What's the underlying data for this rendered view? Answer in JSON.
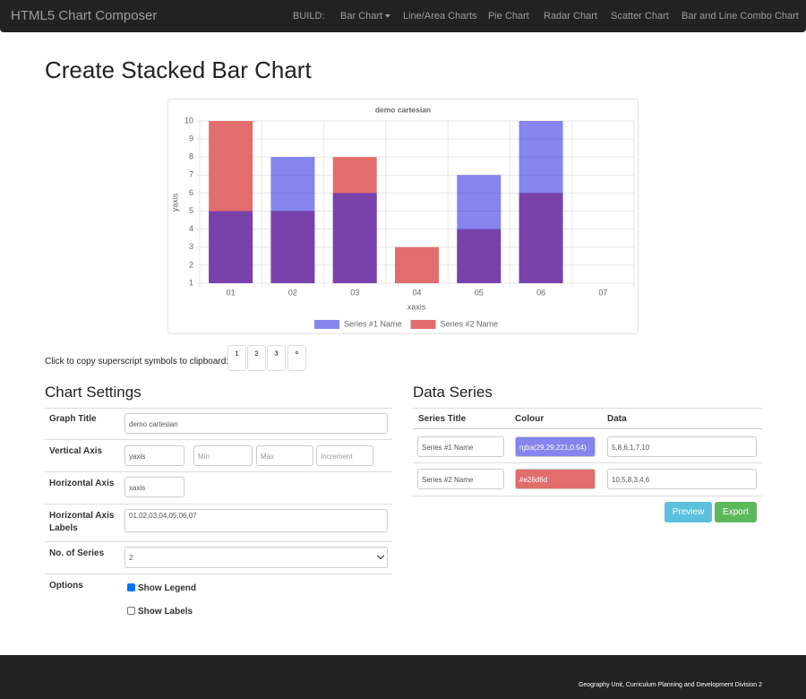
{
  "navbar": {
    "brand": "HTML5 Chart Composer",
    "items": [
      "BUILD:",
      "Bar Chart",
      "Line/Area Charts",
      "Pie Chart",
      "Radar Chart",
      "Scatter Chart",
      "Bar and Line Combo Chart"
    ]
  },
  "heading": "Create Stacked Bar Chart",
  "chart_data": {
    "type": "bar",
    "title": "demo cartesian",
    "y_label": "yaxis",
    "x_label": "xaxis",
    "categories": [
      "01",
      "02",
      "03",
      "04",
      "05",
      "06",
      "07"
    ],
    "series": [
      {
        "name": "Series #1 Name",
        "color": "rgba(29,29,221,0.54)",
        "values": [
          5,
          8,
          6,
          1,
          7,
          10,
          null
        ]
      },
      {
        "name": "Series #2 Name",
        "color": "#e26d6d",
        "values": [
          10,
          5,
          8,
          3,
          4,
          6,
          null
        ]
      }
    ],
    "ylim": [
      1,
      10
    ],
    "yticks": [
      1,
      2,
      3,
      4,
      5,
      6,
      7,
      8,
      9,
      10
    ],
    "grid": true,
    "legend": "bottom"
  },
  "superscript": {
    "prompt": "Click to copy superscript symbols to clipboard:",
    "symbols": [
      "¹",
      "²",
      "³",
      "°"
    ]
  },
  "chart_settings": {
    "heading": "Chart Settings",
    "labels": [
      "Graph Title",
      "Vertical Axis",
      "Horizontal Axis",
      "Horizontal Axis Labels",
      "No. of Series",
      "Options"
    ],
    "placeholders": [
      "Min",
      "Max",
      "Increment"
    ],
    "horizontal_labels": "01,02,03,04,05,06,07",
    "series_count": "2",
    "options": [
      "Show Legend",
      "Show Labels"
    ]
  },
  "data_series": {
    "heading": "Data Series",
    "columns": [
      "Series Title",
      "Colour",
      "Data"
    ],
    "data": [
      "5,8,6,1,7,10",
      "10,5,8,3,4,6"
    ],
    "buttons": [
      "Preview",
      "Export"
    ]
  },
  "footer": "Geography Unit, Curriculum Planning and Development Division 2"
}
